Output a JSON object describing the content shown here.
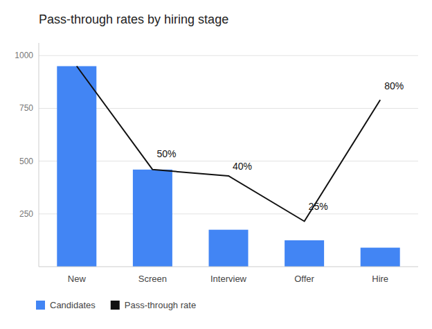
{
  "chart_data": {
    "type": "bar",
    "title": "Pass-through rates by hiring stage",
    "categories": [
      "New",
      "Screen",
      "Interview",
      "Offer",
      "Hire"
    ],
    "series": [
      {
        "name": "Candidates",
        "type": "bar",
        "color": "#4285F4",
        "values": [
          950,
          460,
          175,
          125,
          90
        ]
      },
      {
        "name": "Pass-through rate",
        "type": "line",
        "color": "#111111",
        "values": [
          950,
          460,
          430,
          215,
          790
        ]
      }
    ],
    "annotations": [
      {
        "text": "50%",
        "x": "Screen",
        "y": 510
      },
      {
        "text": "40%",
        "x": "Interview",
        "y": 450
      },
      {
        "text": "25%",
        "x": "Offer",
        "y": 260
      },
      {
        "text": "80%",
        "x": "Hire",
        "y": 830
      }
    ],
    "ylim": [
      0,
      1060
    ],
    "yticks": [
      250,
      500,
      750,
      1000
    ],
    "grid": true,
    "legend": "bottom"
  }
}
